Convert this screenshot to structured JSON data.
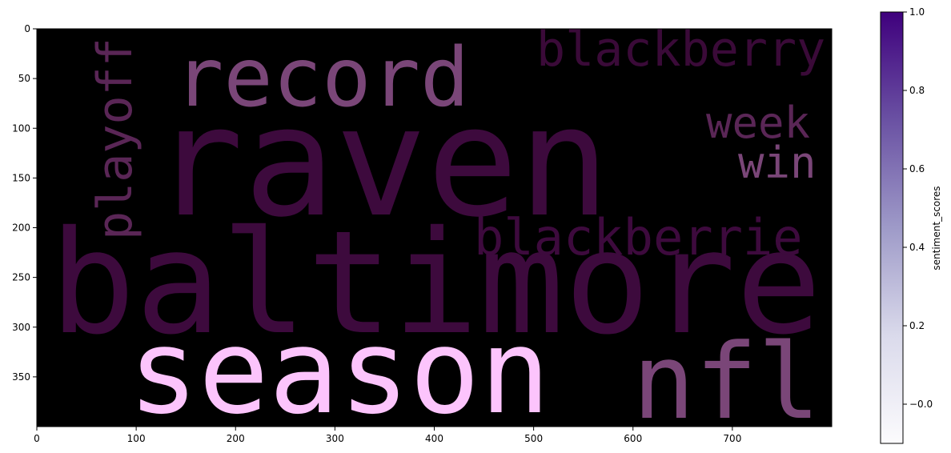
{
  "chart_data": {
    "type": "heatmap",
    "description_kind": "word cloud image rendered with image axes",
    "image_background": "#000000",
    "xlim": [
      0,
      800
    ],
    "ylim": [
      400,
      0
    ],
    "x_ticks": [
      0,
      100,
      200,
      300,
      400,
      500,
      600,
      700
    ],
    "y_ticks": [
      0,
      50,
      100,
      150,
      200,
      250,
      300,
      350
    ],
    "words": [
      {
        "text": "raven",
        "color": "#3d0a3d",
        "rotate": false
      },
      {
        "text": "baltimore",
        "color": "#3d0a3d",
        "rotate": false
      },
      {
        "text": "season",
        "color": "#fcc4fc",
        "rotate": false
      },
      {
        "text": "record",
        "color": "#7a4678",
        "rotate": false
      },
      {
        "text": "nfl",
        "color": "#7a4678",
        "rotate": false
      },
      {
        "text": "blackberry",
        "color": "#3a0a38",
        "rotate": false
      },
      {
        "text": "blackberrie",
        "color": "#3d0a3d",
        "rotate": false
      },
      {
        "text": "playoff",
        "color": "#5a2656",
        "rotate": true
      },
      {
        "text": "week",
        "color": "#5a2656",
        "rotate": false
      },
      {
        "text": "win",
        "color": "#7a4678",
        "rotate": false
      }
    ],
    "colorbar": {
      "label": "sentiment_scores",
      "range": [
        -0.1,
        1.0
      ],
      "ticks": [
        -0.0,
        0.2,
        0.4,
        0.6,
        0.8,
        1.0
      ],
      "tick_labels": [
        "−0.0",
        "0.2",
        "0.4",
        "0.6",
        "0.8",
        "1.0"
      ],
      "colormap": "Purples",
      "color_low": "#fcfbfd",
      "color_high": "#3f007d"
    }
  }
}
